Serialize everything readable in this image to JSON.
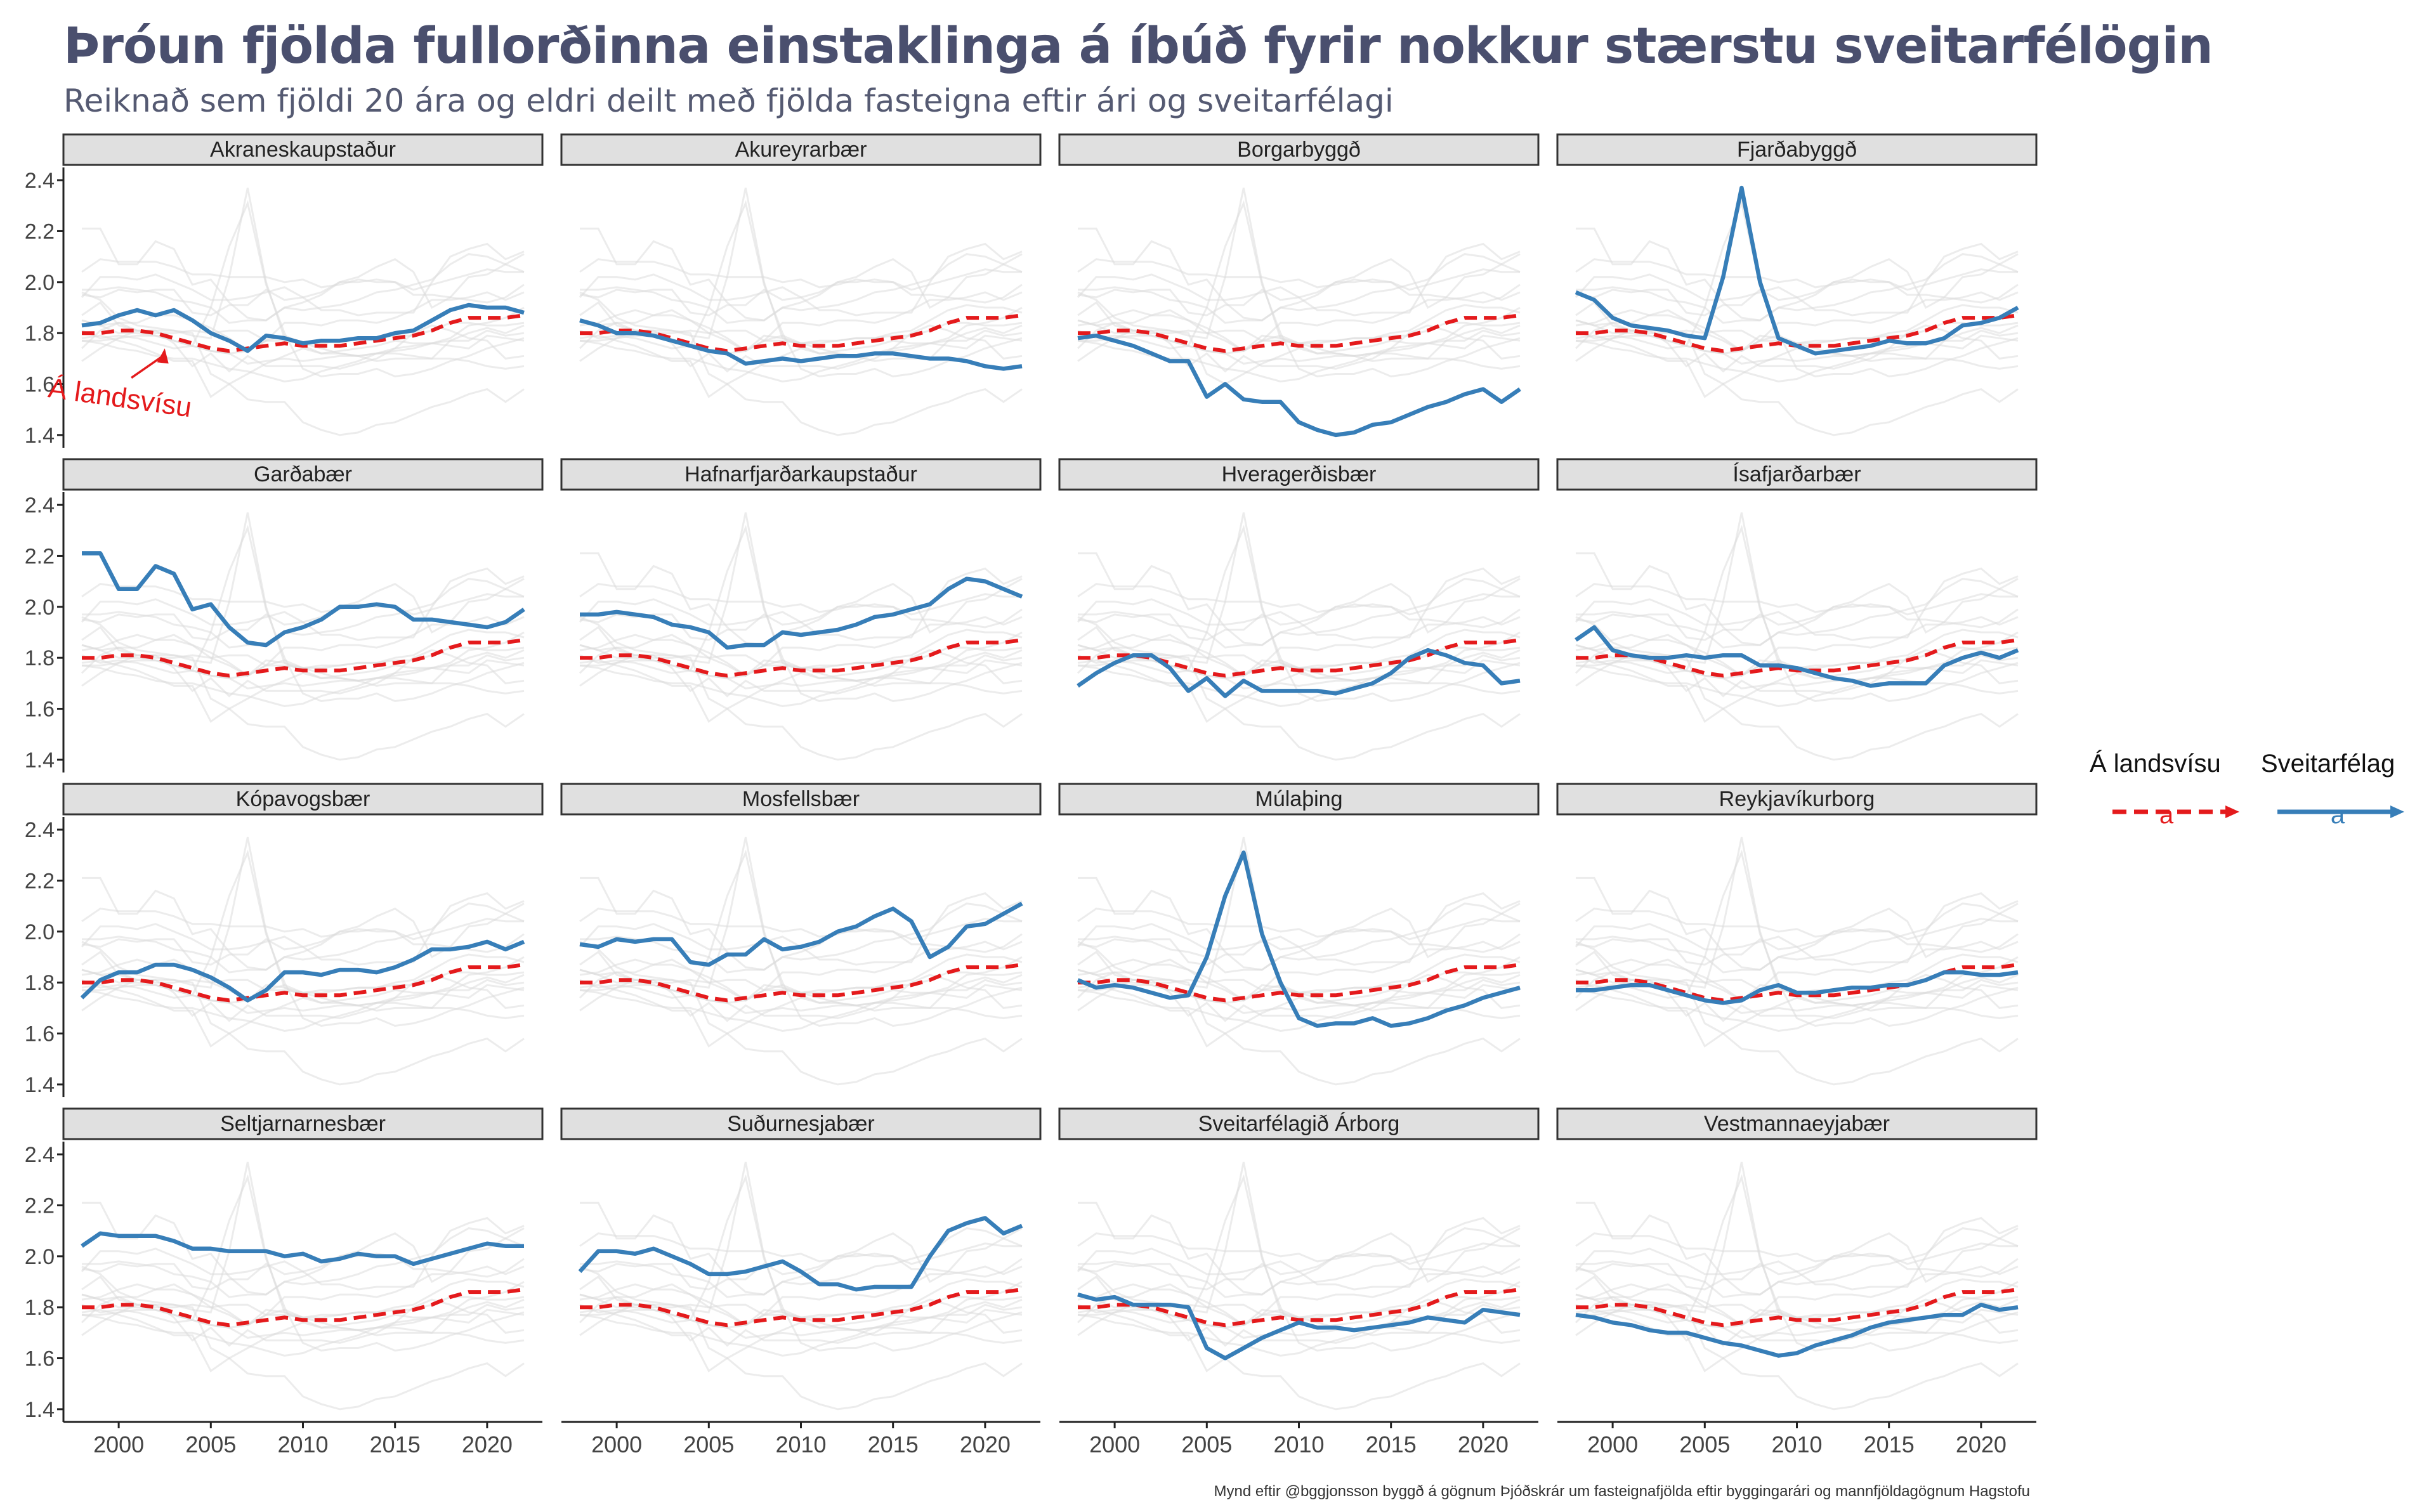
{
  "title": "Þróun fjölda fullorðinna einstaklinga á íbúð fyrir nokkur stærstu sveitarfélögin",
  "subtitle": "Reiknað sem fjöldi 20 ára og eldri deilt með fjölda fasteigna eftir ári og sveitarfélagi",
  "caption": "Mynd eftir @bggjonsson byggð á gögnum Þjóðskrár um fasteignafjölda eftir byggingarári og mannfjöldagögnum Hagstofu",
  "colors": {
    "national": "#e41a1c",
    "municipality": "#377eb8",
    "background": "#dddddd",
    "strip": "#e0e0e0"
  },
  "legend": {
    "position": "right",
    "entries": [
      {
        "label": "Á landsvísu",
        "key": "national",
        "color": "#e41a1c",
        "style": "dashed"
      },
      {
        "label": "Sveitarfélag",
        "key": "municipality",
        "color": "#377eb8",
        "style": "solid"
      }
    ]
  },
  "chart_data": {
    "type": "line",
    "layout": "facet-grid 4x4",
    "grid": false,
    "ylim": [
      1.35,
      2.45
    ],
    "xlim": [
      1997,
      2023
    ],
    "y_ticks": [
      1.4,
      1.6,
      1.8,
      2.0,
      2.2,
      2.4
    ],
    "x_ticks": [
      2000,
      2005,
      2010,
      2015,
      2020
    ],
    "x_tick_labels": [
      "2000",
      "2005",
      "2010",
      "2015",
      "2020"
    ],
    "y_tick_labels": [
      "1.4",
      "1.6",
      "1.8",
      "2.0",
      "2.2",
      "2.4"
    ],
    "annotation": {
      "text": "Á landsvísu",
      "panel": "Akraneskaupstaður",
      "x": 2000,
      "y": 1.51,
      "arrow_to": [
        2002.5,
        1.74
      ]
    },
    "x": [
      1998,
      1999,
      2000,
      2001,
      2002,
      2003,
      2004,
      2005,
      2006,
      2007,
      2008,
      2009,
      2010,
      2011,
      2012,
      2013,
      2014,
      2015,
      2016,
      2017,
      2018,
      2019,
      2020,
      2021,
      2022
    ],
    "national": [
      1.8,
      1.8,
      1.81,
      1.81,
      1.8,
      1.78,
      1.76,
      1.74,
      1.73,
      1.74,
      1.75,
      1.76,
      1.75,
      1.75,
      1.75,
      1.76,
      1.77,
      1.78,
      1.79,
      1.81,
      1.84,
      1.86,
      1.86,
      1.86,
      1.87
    ],
    "panels": [
      {
        "name": "Akraneskaupstaður",
        "values": [
          1.83,
          1.84,
          1.87,
          1.89,
          1.87,
          1.89,
          1.85,
          1.8,
          1.77,
          1.73,
          1.79,
          1.78,
          1.76,
          1.77,
          1.77,
          1.78,
          1.78,
          1.8,
          1.81,
          1.85,
          1.89,
          1.91,
          1.9,
          1.9,
          1.88
        ]
      },
      {
        "name": "Akureyrarbær",
        "values": [
          1.85,
          1.83,
          1.8,
          1.8,
          1.79,
          1.77,
          1.75,
          1.73,
          1.72,
          1.68,
          1.69,
          1.7,
          1.69,
          1.7,
          1.71,
          1.71,
          1.72,
          1.72,
          1.71,
          1.7,
          1.7,
          1.69,
          1.67,
          1.66,
          1.67
        ]
      },
      {
        "name": "Borgarbyggð",
        "values": [
          1.78,
          1.79,
          1.77,
          1.75,
          1.72,
          1.69,
          1.69,
          1.55,
          1.6,
          1.54,
          1.53,
          1.53,
          1.45,
          1.42,
          1.4,
          1.41,
          1.44,
          1.45,
          1.48,
          1.51,
          1.53,
          1.56,
          1.58,
          1.53,
          1.58
        ]
      },
      {
        "name": "Fjarðabyggð",
        "values": [
          1.96,
          1.93,
          1.86,
          1.83,
          1.82,
          1.81,
          1.79,
          1.78,
          2.02,
          2.37,
          2.0,
          1.78,
          1.75,
          1.72,
          1.73,
          1.74,
          1.75,
          1.77,
          1.76,
          1.76,
          1.78,
          1.83,
          1.84,
          1.86,
          1.9
        ]
      },
      {
        "name": "Garðabær",
        "values": [
          2.21,
          2.21,
          2.07,
          2.07,
          2.16,
          2.13,
          1.99,
          2.01,
          1.92,
          1.86,
          1.85,
          1.9,
          1.92,
          1.95,
          2.0,
          2.0,
          2.01,
          2.0,
          1.95,
          1.95,
          1.94,
          1.93,
          1.92,
          1.94,
          1.99
        ]
      },
      {
        "name": "Hafnarfjarðarkaupstaður",
        "values": [
          1.97,
          1.97,
          1.98,
          1.97,
          1.96,
          1.93,
          1.92,
          1.9,
          1.84,
          1.85,
          1.85,
          1.9,
          1.89,
          1.9,
          1.91,
          1.93,
          1.96,
          1.97,
          1.99,
          2.01,
          2.07,
          2.11,
          2.1,
          2.07,
          2.04
        ]
      },
      {
        "name": "Hveragerðisbær",
        "values": [
          1.69,
          1.74,
          1.78,
          1.81,
          1.81,
          1.76,
          1.67,
          1.72,
          1.65,
          1.71,
          1.67,
          1.67,
          1.67,
          1.67,
          1.66,
          1.68,
          1.7,
          1.74,
          1.8,
          1.83,
          1.81,
          1.78,
          1.77,
          1.7,
          1.71
        ]
      },
      {
        "name": "Ísafjarðarbær",
        "values": [
          1.87,
          1.92,
          1.83,
          1.81,
          1.8,
          1.8,
          1.81,
          1.8,
          1.81,
          1.81,
          1.77,
          1.77,
          1.76,
          1.74,
          1.72,
          1.71,
          1.69,
          1.7,
          1.7,
          1.7,
          1.77,
          1.8,
          1.82,
          1.8,
          1.83
        ]
      },
      {
        "name": "Kópavogsbær",
        "values": [
          1.74,
          1.81,
          1.84,
          1.84,
          1.87,
          1.87,
          1.85,
          1.82,
          1.78,
          1.73,
          1.77,
          1.84,
          1.84,
          1.83,
          1.85,
          1.85,
          1.84,
          1.86,
          1.89,
          1.93,
          1.93,
          1.94,
          1.96,
          1.93,
          1.96
        ]
      },
      {
        "name": "Mosfellsbær",
        "values": [
          1.95,
          1.94,
          1.97,
          1.96,
          1.97,
          1.97,
          1.88,
          1.87,
          1.91,
          1.91,
          1.97,
          1.93,
          1.94,
          1.96,
          2.0,
          2.02,
          2.06,
          2.09,
          2.04,
          1.9,
          1.94,
          2.02,
          2.03,
          2.07,
          2.11
        ]
      },
      {
        "name": "Múlaþing",
        "values": [
          1.81,
          1.78,
          1.79,
          1.78,
          1.76,
          1.74,
          1.75,
          1.9,
          2.14,
          2.31,
          1.99,
          1.8,
          1.66,
          1.63,
          1.64,
          1.64,
          1.66,
          1.63,
          1.64,
          1.66,
          1.69,
          1.71,
          1.74,
          1.76,
          1.78
        ]
      },
      {
        "name": "Reykjavíkurborg",
        "values": [
          1.77,
          1.77,
          1.78,
          1.79,
          1.79,
          1.77,
          1.75,
          1.73,
          1.72,
          1.73,
          1.77,
          1.79,
          1.76,
          1.76,
          1.77,
          1.78,
          1.78,
          1.79,
          1.79,
          1.81,
          1.84,
          1.84,
          1.83,
          1.83,
          1.84
        ]
      },
      {
        "name": "Seltjarnarnesbær",
        "values": [
          2.04,
          2.09,
          2.08,
          2.08,
          2.08,
          2.06,
          2.03,
          2.03,
          2.02,
          2.02,
          2.02,
          2.0,
          2.01,
          1.98,
          1.99,
          2.01,
          2.0,
          2.0,
          1.97,
          1.99,
          2.01,
          2.03,
          2.05,
          2.04,
          2.04
        ]
      },
      {
        "name": "Suðurnesjabær",
        "values": [
          1.94,
          2.02,
          2.02,
          2.01,
          2.03,
          2.0,
          1.97,
          1.93,
          1.93,
          1.94,
          1.96,
          1.98,
          1.94,
          1.89,
          1.89,
          1.87,
          1.88,
          1.88,
          1.88,
          2.0,
          2.1,
          2.13,
          2.15,
          2.09,
          2.12
        ]
      },
      {
        "name": "Sveitarfélagið Árborg",
        "values": [
          1.85,
          1.83,
          1.84,
          1.81,
          1.81,
          1.81,
          1.8,
          1.64,
          1.6,
          1.64,
          1.68,
          1.71,
          1.74,
          1.72,
          1.72,
          1.71,
          1.72,
          1.73,
          1.74,
          1.76,
          1.75,
          1.74,
          1.79,
          1.78,
          1.77
        ]
      },
      {
        "name": "Vestmannaeyjabær",
        "values": [
          1.77,
          1.76,
          1.74,
          1.73,
          1.71,
          1.7,
          1.7,
          1.68,
          1.66,
          1.65,
          1.63,
          1.61,
          1.62,
          1.65,
          1.67,
          1.69,
          1.72,
          1.74,
          1.75,
          1.76,
          1.77,
          1.77,
          1.81,
          1.79,
          1.8
        ]
      }
    ]
  }
}
